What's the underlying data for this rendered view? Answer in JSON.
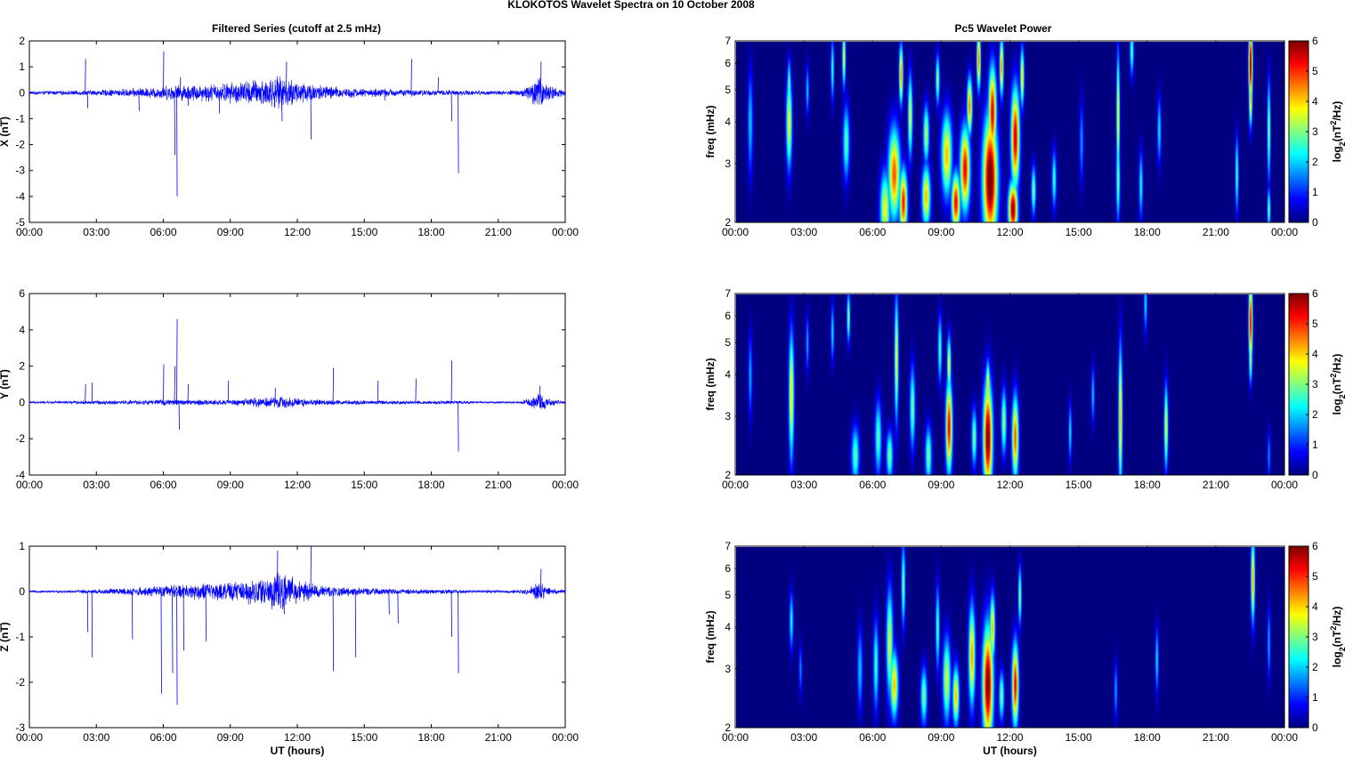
{
  "figure_title": "KLOKOTOS Wavelet Spectra on 10 October   2008",
  "chart_data": [
    {
      "type": "line",
      "panel": "X",
      "title": "Filtered Series (cutoff at 2.5 mHz)",
      "xlabel": "",
      "ylabel": "X (nT)",
      "xlim": [
        0,
        24
      ],
      "ylim": [
        -5,
        2
      ],
      "x_tick_labels": [
        "00:00",
        "03:00",
        "06:00",
        "09:00",
        "12:00",
        "15:00",
        "18:00",
        "21:00",
        "00:00"
      ],
      "y_ticks": [
        -5,
        -4,
        -3,
        -2,
        -1,
        0,
        1,
        2
      ],
      "line_color": "#0000ff",
      "envelope": {
        "hours": [
          0,
          2,
          3,
          4.5,
          5.5,
          6.5,
          7.5,
          8.5,
          9.5,
          10.5,
          11,
          11.5,
          12,
          13,
          14,
          15,
          16,
          17,
          18,
          19,
          20,
          21,
          22,
          22.5,
          22.8,
          23.2,
          24
        ],
        "amp": [
          0.06,
          0.08,
          0.1,
          0.15,
          0.2,
          0.28,
          0.3,
          0.33,
          0.42,
          0.52,
          0.58,
          0.55,
          0.45,
          0.3,
          0.2,
          0.15,
          0.15,
          0.12,
          0.1,
          0.1,
          0.08,
          0.08,
          0.1,
          0.4,
          0.6,
          0.3,
          0.1
        ]
      },
      "spikes": [
        [
          2.5,
          1.3
        ],
        [
          2.6,
          -0.6
        ],
        [
          4.9,
          -0.7
        ],
        [
          6,
          1.6
        ],
        [
          6.5,
          -2.4
        ],
        [
          6.6,
          -4
        ],
        [
          6.75,
          0.6
        ],
        [
          7.1,
          -0.5
        ],
        [
          8.5,
          -0.8
        ],
        [
          11.5,
          1.2
        ],
        [
          11.3,
          -1.1
        ],
        [
          12.6,
          -1.8
        ],
        [
          15.9,
          -0.3
        ],
        [
          17.1,
          1.3
        ],
        [
          18.3,
          0.6
        ],
        [
          18.9,
          -1.1
        ],
        [
          19.2,
          -3.1
        ],
        [
          22.9,
          1.2
        ]
      ]
    },
    {
      "type": "line",
      "panel": "Y",
      "title": "",
      "xlabel": "",
      "ylabel": "Y (nT)",
      "xlim": [
        0,
        24
      ],
      "ylim": [
        -4,
        6
      ],
      "x_tick_labels": [
        "00:00",
        "03:00",
        "06:00",
        "09:00",
        "12:00",
        "15:00",
        "18:00",
        "21:00",
        "00:00"
      ],
      "y_ticks": [
        -4,
        -2,
        0,
        2,
        4,
        6
      ],
      "line_color": "#0000ff",
      "envelope": {
        "hours": [
          0,
          2,
          3,
          5,
          6,
          7,
          9,
          10.5,
          11.5,
          12.5,
          14,
          16,
          18,
          19,
          20,
          22,
          22.5,
          22.8,
          23.2,
          24
        ],
        "amp": [
          0.05,
          0.08,
          0.1,
          0.12,
          0.15,
          0.15,
          0.13,
          0.28,
          0.3,
          0.18,
          0.12,
          0.1,
          0.1,
          0.1,
          0.06,
          0.05,
          0.3,
          0.55,
          0.2,
          0.05
        ]
      },
      "spikes": [
        [
          2.5,
          1.0
        ],
        [
          2.8,
          1.1
        ],
        [
          6,
          2.1
        ],
        [
          6.5,
          2.0
        ],
        [
          6.6,
          4.6
        ],
        [
          6.7,
          -1.5
        ],
        [
          7.1,
          1.0
        ],
        [
          8.9,
          1.2
        ],
        [
          11,
          0.8
        ],
        [
          13.6,
          1.9
        ],
        [
          15.6,
          1.2
        ],
        [
          17.3,
          1.3
        ],
        [
          18.9,
          2.3
        ],
        [
          19.2,
          -2.7
        ],
        [
          22.85,
          0.9
        ]
      ]
    },
    {
      "type": "line",
      "panel": "Z",
      "title": "",
      "xlabel": "UT (hours)",
      "ylabel": "Z (nT)",
      "xlim": [
        0,
        24
      ],
      "ylim": [
        -3,
        1
      ],
      "x_tick_labels": [
        "00:00",
        "03:00",
        "06:00",
        "09:00",
        "12:00",
        "15:00",
        "18:00",
        "21:00",
        "00:00"
      ],
      "y_ticks": [
        -3,
        -2,
        -1,
        0,
        1
      ],
      "line_color": "#0000ff",
      "envelope": {
        "hours": [
          0,
          2,
          3,
          4.5,
          5.5,
          6.5,
          7.5,
          8.5,
          9.5,
          10.5,
          11,
          11.5,
          12,
          13,
          14,
          15,
          16,
          17,
          18,
          19,
          20,
          21,
          22,
          22.5,
          22.8,
          23.2,
          24
        ],
        "amp": [
          0.02,
          0.03,
          0.05,
          0.08,
          0.1,
          0.14,
          0.17,
          0.18,
          0.22,
          0.3,
          0.4,
          0.35,
          0.25,
          0.13,
          0.1,
          0.07,
          0.06,
          0.05,
          0.05,
          0.04,
          0.03,
          0.03,
          0.04,
          0.12,
          0.2,
          0.1,
          0.03
        ]
      },
      "spikes": [
        [
          2.6,
          -0.9
        ],
        [
          2.8,
          -1.45
        ],
        [
          4.6,
          -1.05
        ],
        [
          5.9,
          -2.25
        ],
        [
          6.4,
          -1.8
        ],
        [
          6.6,
          -2.5
        ],
        [
          6.9,
          -1.3
        ],
        [
          7.9,
          -1.1
        ],
        [
          11.1,
          0.9
        ],
        [
          11.4,
          -0.5
        ],
        [
          12.6,
          1.0
        ],
        [
          13.6,
          -1.75
        ],
        [
          14.6,
          -1.45
        ],
        [
          16.1,
          -0.5
        ],
        [
          16.5,
          -0.7
        ],
        [
          18.9,
          -1.0
        ],
        [
          19.2,
          -1.8
        ],
        [
          22.9,
          0.5
        ]
      ]
    },
    {
      "type": "heatmap",
      "panel": "X",
      "title": "Pc5 Wavelet Power",
      "xlabel": "",
      "ylabel": "freq (mHz)",
      "xlim": [
        0,
        24
      ],
      "ylim": [
        2,
        7
      ],
      "y_scale": "log",
      "x_tick_labels": [
        "00:00",
        "03:00",
        "06:00",
        "09:00",
        "12:00",
        "15:00",
        "18:00",
        "21:00",
        "00:00"
      ],
      "y_ticks": [
        2,
        3,
        4,
        5,
        6,
        7
      ],
      "colorbar_label": "log2(nT^2/Hz)",
      "colorbar_ticks": [
        0,
        1,
        2,
        3,
        4,
        5,
        6
      ],
      "colormap": "jet",
      "blobs": [
        [
          0.6,
          4.0,
          0.08,
          0.25,
          2.0
        ],
        [
          2.3,
          4.0,
          0.09,
          0.22,
          3.8
        ],
        [
          2.3,
          5.2,
          0.05,
          0.12,
          3.0
        ],
        [
          3.1,
          5.0,
          0.05,
          0.12,
          2.0
        ],
        [
          4.2,
          5.8,
          0.05,
          0.15,
          2.6
        ],
        [
          4.7,
          6.3,
          0.05,
          0.14,
          3.8
        ],
        [
          4.8,
          3.5,
          0.1,
          0.18,
          2.8
        ],
        [
          6.5,
          2.2,
          0.15,
          0.18,
          3.8
        ],
        [
          6.9,
          2.8,
          0.18,
          0.22,
          4.8
        ],
        [
          7.3,
          2.3,
          0.12,
          0.16,
          5.2
        ],
        [
          7.2,
          5.6,
          0.06,
          0.14,
          4.6
        ],
        [
          7.6,
          4.2,
          0.07,
          0.2,
          3.6
        ],
        [
          8.3,
          2.4,
          0.13,
          0.15,
          4.2
        ],
        [
          8.3,
          3.7,
          0.09,
          0.14,
          3.4
        ],
        [
          8.8,
          5.4,
          0.06,
          0.12,
          3.2
        ],
        [
          9.2,
          3.2,
          0.16,
          0.2,
          4.2
        ],
        [
          9.6,
          2.3,
          0.13,
          0.14,
          5.4
        ],
        [
          10,
          2.9,
          0.15,
          0.2,
          5.4
        ],
        [
          10.2,
          4.5,
          0.08,
          0.14,
          4.6
        ],
        [
          10.6,
          6.2,
          0.06,
          0.14,
          4.8
        ],
        [
          11.1,
          2.7,
          0.22,
          0.3,
          6.5
        ],
        [
          11.2,
          4.3,
          0.12,
          0.22,
          5.5
        ],
        [
          11.6,
          5.9,
          0.06,
          0.14,
          4.6
        ],
        [
          12.1,
          2.2,
          0.14,
          0.13,
          6.0
        ],
        [
          12.2,
          3.6,
          0.13,
          0.24,
          5.6
        ],
        [
          12.5,
          5.5,
          0.06,
          0.14,
          4.0
        ],
        [
          13,
          2.5,
          0.07,
          0.12,
          3.0
        ],
        [
          13.9,
          2.7,
          0.07,
          0.14,
          2.6
        ],
        [
          15.1,
          3.5,
          0.06,
          0.2,
          1.7
        ],
        [
          16.7,
          4.2,
          0.05,
          0.3,
          4.0
        ],
        [
          16.7,
          2.7,
          0.06,
          0.2,
          3.0
        ],
        [
          17.3,
          6.6,
          0.06,
          0.12,
          2.8
        ],
        [
          17.7,
          2.6,
          0.06,
          0.16,
          2.4
        ],
        [
          18.5,
          3.8,
          0.06,
          0.16,
          2.2
        ],
        [
          21.9,
          2.8,
          0.05,
          0.18,
          2.8
        ],
        [
          22.5,
          6.0,
          0.06,
          0.18,
          6.2
        ],
        [
          22.5,
          4.8,
          0.05,
          0.14,
          4.5
        ],
        [
          23.3,
          3.8,
          0.05,
          0.24,
          3.2
        ],
        [
          23.3,
          2.2,
          0.05,
          0.1,
          3.0
        ]
      ]
    },
    {
      "type": "heatmap",
      "panel": "Y",
      "title": "",
      "xlabel": "",
      "ylabel": "freq (mHz)",
      "xlim": [
        0,
        24
      ],
      "ylim": [
        2,
        7
      ],
      "y_scale": "log",
      "x_tick_labels": [
        "00:00",
        "03:00",
        "06:00",
        "09:00",
        "12:00",
        "15:00",
        "18:00",
        "21:00",
        "00:00"
      ],
      "y_ticks": [
        2,
        3,
        4,
        5,
        6,
        7
      ],
      "colorbar_label": "log2(nT^2/Hz)",
      "colorbar_ticks": [
        0,
        1,
        2,
        3,
        4,
        5,
        6
      ],
      "colormap": "jet",
      "blobs": [
        [
          0.6,
          4.0,
          0.06,
          0.2,
          1.8
        ],
        [
          2.4,
          3.5,
          0.08,
          0.3,
          4.0
        ],
        [
          2.4,
          2.4,
          0.06,
          0.1,
          2.0
        ],
        [
          3.1,
          5.0,
          0.05,
          0.14,
          1.8
        ],
        [
          4.2,
          5.4,
          0.05,
          0.14,
          2.2
        ],
        [
          4.9,
          6.0,
          0.05,
          0.12,
          3.2
        ],
        [
          5.2,
          2.3,
          0.12,
          0.14,
          2.8
        ],
        [
          6.2,
          2.6,
          0.1,
          0.18,
          2.8
        ],
        [
          6.7,
          2.3,
          0.1,
          0.12,
          3.0
        ],
        [
          7.0,
          4.5,
          0.06,
          0.3,
          3.8
        ],
        [
          7.7,
          3.2,
          0.08,
          0.2,
          3.0
        ],
        [
          8.4,
          2.3,
          0.1,
          0.14,
          3.0
        ],
        [
          8.9,
          4.8,
          0.06,
          0.16,
          2.8
        ],
        [
          9.3,
          2.8,
          0.1,
          0.22,
          5.4
        ],
        [
          9.3,
          4.3,
          0.06,
          0.14,
          3.8
        ],
        [
          10.4,
          2.6,
          0.08,
          0.14,
          3.0
        ],
        [
          11.0,
          2.6,
          0.14,
          0.26,
          6.2
        ],
        [
          11.0,
          3.7,
          0.06,
          0.12,
          4.2
        ],
        [
          11.7,
          2.9,
          0.08,
          0.16,
          3.2
        ],
        [
          12.2,
          2.6,
          0.1,
          0.2,
          4.8
        ],
        [
          14.6,
          2.7,
          0.05,
          0.14,
          2.2
        ],
        [
          15.6,
          3.5,
          0.05,
          0.14,
          2.0
        ],
        [
          16.8,
          3.0,
          0.06,
          0.34,
          4.2
        ],
        [
          18.8,
          2.8,
          0.06,
          0.2,
          3.8
        ],
        [
          17.9,
          6.6,
          0.05,
          0.14,
          2.2
        ],
        [
          22.5,
          5.8,
          0.06,
          0.2,
          5.5
        ],
        [
          22.5,
          4.5,
          0.05,
          0.12,
          3.4
        ],
        [
          23.3,
          2.3,
          0.05,
          0.12,
          1.6
        ]
      ]
    },
    {
      "type": "heatmap",
      "panel": "Z",
      "title": "",
      "xlabel": "UT (hours)",
      "ylabel": "freq (mHz)",
      "xlim": [
        0,
        24
      ],
      "ylim": [
        2,
        7
      ],
      "y_scale": "log",
      "x_tick_labels": [
        "00:00",
        "03:00",
        "06:00",
        "09:00",
        "12:00",
        "15:00",
        "18:00",
        "21:00",
        "00:00"
      ],
      "y_ticks": [
        2,
        3,
        4,
        5,
        6,
        7
      ],
      "colorbar_label": "log2(nT^2/Hz)",
      "colorbar_ticks": [
        0,
        1,
        2,
        3,
        4,
        5,
        6
      ],
      "colormap": "jet",
      "blobs": [
        [
          2.4,
          4.2,
          0.06,
          0.14,
          2.4
        ],
        [
          2.8,
          3.0,
          0.05,
          0.12,
          1.6
        ],
        [
          5.4,
          3.0,
          0.08,
          0.2,
          2.0
        ],
        [
          6.1,
          3.1,
          0.08,
          0.22,
          2.6
        ],
        [
          6.7,
          3.6,
          0.1,
          0.26,
          3.6
        ],
        [
          6.9,
          2.7,
          0.12,
          0.16,
          4.2
        ],
        [
          7.3,
          5.4,
          0.06,
          0.2,
          3.0
        ],
        [
          8.2,
          2.5,
          0.1,
          0.14,
          3.0
        ],
        [
          8.8,
          4.0,
          0.06,
          0.2,
          2.8
        ],
        [
          9.2,
          2.8,
          0.12,
          0.2,
          3.6
        ],
        [
          9.6,
          2.5,
          0.1,
          0.14,
          4.2
        ],
        [
          10.3,
          3.3,
          0.1,
          0.24,
          4.4
        ],
        [
          11.0,
          2.7,
          0.16,
          0.28,
          6.2
        ],
        [
          11.2,
          4.0,
          0.08,
          0.16,
          4.2
        ],
        [
          11.6,
          2.5,
          0.08,
          0.12,
          3.0
        ],
        [
          12.2,
          2.7,
          0.1,
          0.2,
          5.4
        ],
        [
          12.4,
          5.0,
          0.05,
          0.14,
          3.2
        ],
        [
          16.6,
          2.6,
          0.05,
          0.14,
          1.8
        ],
        [
          18.4,
          3.2,
          0.05,
          0.16,
          2.2
        ],
        [
          22.6,
          5.6,
          0.06,
          0.2,
          4.4
        ],
        [
          23.3,
          3.6,
          0.05,
          0.18,
          1.8
        ]
      ]
    }
  ]
}
